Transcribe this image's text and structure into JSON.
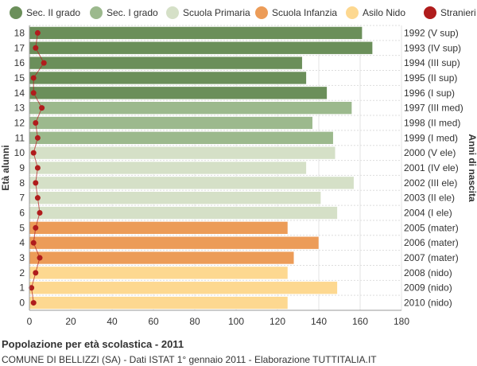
{
  "chart_data": {
    "type": "bar",
    "orientation": "horizontal",
    "title": "Popolazione per età scolastica - 2011",
    "subtitle": "COMUNE DI BELLIZZI (SA) - Dati ISTAT 1° gennaio 2011 - Elaborazione TUTTITALIA.IT",
    "ylabel_left": "Età alunni",
    "ylabel_right": "Anni di nascita",
    "xlim": [
      0,
      180
    ],
    "x_ticks": [
      "0",
      "20",
      "40",
      "60",
      "80",
      "100",
      "120",
      "140",
      "160",
      "180"
    ],
    "grid": true,
    "legend_position": "top",
    "legend": [
      {
        "label": "Sec. II grado",
        "color": "#6b8f5a"
      },
      {
        "label": "Sec. I grado",
        "color": "#9cb98d"
      },
      {
        "label": "Scuola Primaria",
        "color": "#d5e0c7"
      },
      {
        "label": "Scuola Infanzia",
        "color": "#ec9c58"
      },
      {
        "label": "Asilo Nido",
        "color": "#fdd890"
      },
      {
        "label": "Stranieri",
        "color": "#b01c1c"
      }
    ],
    "rows": [
      {
        "age": "18",
        "year": "1992 (V sup)",
        "value": 161,
        "stranieri": 4,
        "group": 0
      },
      {
        "age": "17",
        "year": "1993 (IV sup)",
        "value": 166,
        "stranieri": 3,
        "group": 0
      },
      {
        "age": "16",
        "year": "1994 (III sup)",
        "value": 132,
        "stranieri": 7,
        "group": 0
      },
      {
        "age": "15",
        "year": "1995 (II sup)",
        "value": 134,
        "stranieri": 2,
        "group": 0
      },
      {
        "age": "14",
        "year": "1996 (I sup)",
        "value": 144,
        "stranieri": 2,
        "group": 0
      },
      {
        "age": "13",
        "year": "1997 (III med)",
        "value": 156,
        "stranieri": 6,
        "group": 1
      },
      {
        "age": "12",
        "year": "1998 (II med)",
        "value": 137,
        "stranieri": 3,
        "group": 1
      },
      {
        "age": "11",
        "year": "1999 (I med)",
        "value": 147,
        "stranieri": 4,
        "group": 1
      },
      {
        "age": "10",
        "year": "2000 (V ele)",
        "value": 148,
        "stranieri": 2,
        "group": 2
      },
      {
        "age": "9",
        "year": "2001 (IV ele)",
        "value": 134,
        "stranieri": 4,
        "group": 2
      },
      {
        "age": "8",
        "year": "2002 (III ele)",
        "value": 157,
        "stranieri": 3,
        "group": 2
      },
      {
        "age": "7",
        "year": "2003 (II ele)",
        "value": 141,
        "stranieri": 4,
        "group": 2
      },
      {
        "age": "6",
        "year": "2004 (I ele)",
        "value": 149,
        "stranieri": 5,
        "group": 2
      },
      {
        "age": "5",
        "year": "2005 (mater)",
        "value": 125,
        "stranieri": 3,
        "group": 3
      },
      {
        "age": "4",
        "year": "2006 (mater)",
        "value": 140,
        "stranieri": 2,
        "group": 3
      },
      {
        "age": "3",
        "year": "2007 (mater)",
        "value": 128,
        "stranieri": 5,
        "group": 3
      },
      {
        "age": "2",
        "year": "2008 (nido)",
        "value": 125,
        "stranieri": 3,
        "group": 4
      },
      {
        "age": "1",
        "year": "2009 (nido)",
        "value": 149,
        "stranieri": 1,
        "group": 4
      },
      {
        "age": "0",
        "year": "2010 (nido)",
        "value": 125,
        "stranieri": 2,
        "group": 4
      }
    ]
  }
}
